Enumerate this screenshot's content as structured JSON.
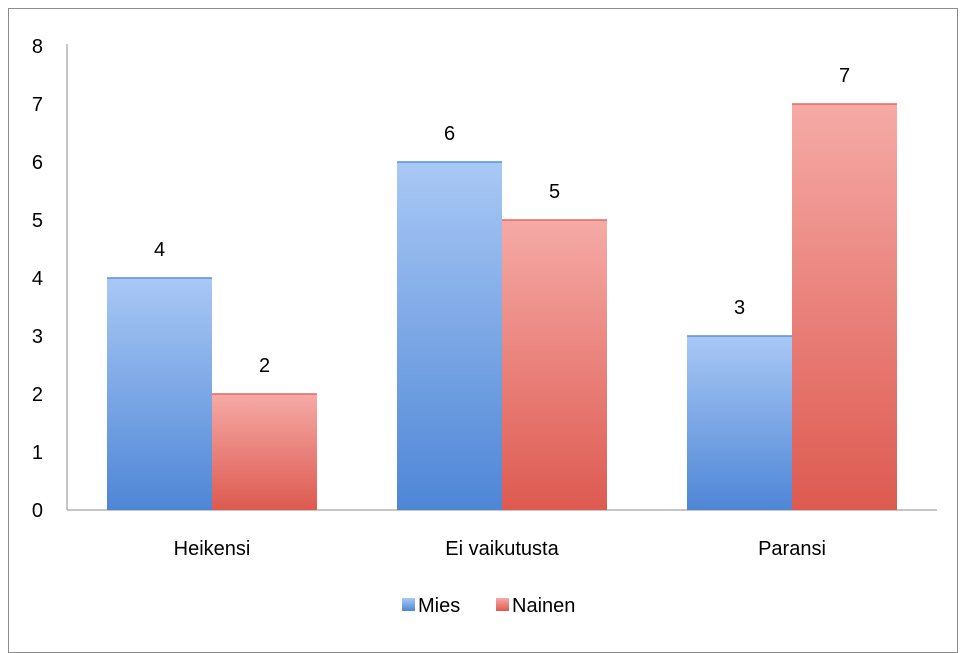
{
  "chart_data": {
    "type": "bar",
    "categories": [
      "Heikensi",
      "Ei vaikutusta",
      "Paransi"
    ],
    "series": [
      {
        "name": "Mies",
        "values": [
          4,
          6,
          3
        ],
        "color": "#6f9fe6"
      },
      {
        "name": "Nainen",
        "values": [
          2,
          5,
          7
        ],
        "color": "#ee7c76"
      }
    ],
    "ylim": [
      0,
      8
    ],
    "yticks": [
      "0",
      "1",
      "2",
      "3",
      "4",
      "5",
      "6",
      "7",
      "8"
    ],
    "grid": false,
    "data_labels": true,
    "legend_position": "bottom"
  }
}
